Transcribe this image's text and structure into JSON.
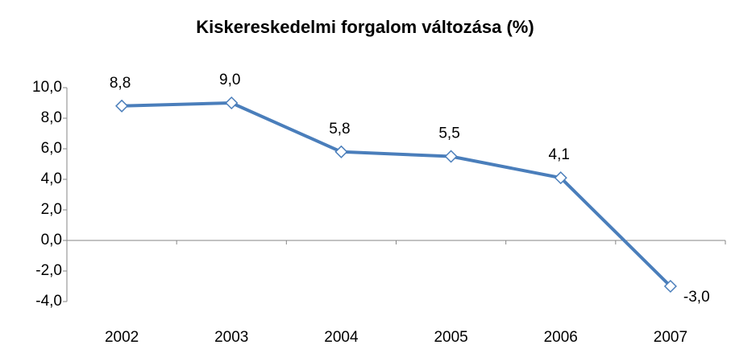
{
  "chart_data": {
    "type": "line",
    "title": "Kiskereskedelmi forgalom változása (%)",
    "categories": [
      "2002",
      "2003",
      "2004",
      "2005",
      "2006",
      "2007"
    ],
    "series": [
      {
        "name": "Kiskereskedelmi forgalom változása",
        "color": "#4a7ebb",
        "values": [
          8.8,
          9.0,
          5.8,
          5.5,
          4.1,
          -3.0
        ],
        "value_labels": [
          "8,8",
          "9,0",
          "5,8",
          "5,5",
          "4,1",
          "-3,0"
        ]
      }
    ],
    "ylim": [
      -4,
      10
    ],
    "yticks": [
      {
        "value": -4,
        "label": "-4,0"
      },
      {
        "value": -2,
        "label": "-2,0"
      },
      {
        "value": 0,
        "label": "0,0"
      },
      {
        "value": 2,
        "label": "2,0"
      },
      {
        "value": 4,
        "label": "4,0"
      },
      {
        "value": 6,
        "label": "6,0"
      },
      {
        "value": 8,
        "label": "8,0"
      },
      {
        "value": 10,
        "label": "10,0"
      }
    ],
    "grid": false
  }
}
